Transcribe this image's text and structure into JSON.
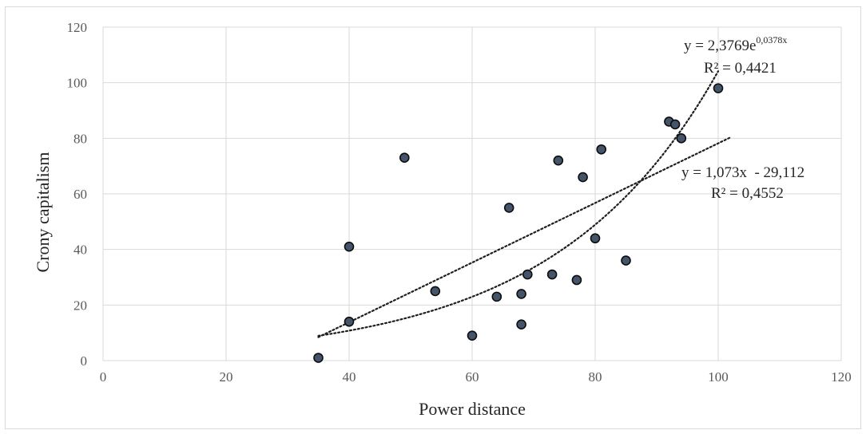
{
  "chart_data": {
    "type": "scatter",
    "title": "",
    "xlabel": "Power distance",
    "ylabel": "Crony capitalism",
    "xlim": [
      0,
      120
    ],
    "ylim": [
      0,
      120
    ],
    "x_ticks": [
      0,
      20,
      40,
      60,
      80,
      100,
      120
    ],
    "y_ticks": [
      0,
      20,
      40,
      60,
      80,
      100,
      120
    ],
    "grid": true,
    "marker_color": "#44546a",
    "marker_edge_color": "#0d0d0d",
    "points": [
      {
        "x": 35,
        "y": 1
      },
      {
        "x": 40,
        "y": 41
      },
      {
        "x": 40,
        "y": 14
      },
      {
        "x": 49,
        "y": 73
      },
      {
        "x": 54,
        "y": 25
      },
      {
        "x": 60,
        "y": 9
      },
      {
        "x": 64,
        "y": 23
      },
      {
        "x": 66,
        "y": 55
      },
      {
        "x": 68,
        "y": 24
      },
      {
        "x": 68,
        "y": 13
      },
      {
        "x": 69,
        "y": 31
      },
      {
        "x": 73,
        "y": 31
      },
      {
        "x": 74,
        "y": 72
      },
      {
        "x": 77,
        "y": 29
      },
      {
        "x": 78,
        "y": 66
      },
      {
        "x": 80,
        "y": 44
      },
      {
        "x": 81,
        "y": 76
      },
      {
        "x": 85,
        "y": 36
      },
      {
        "x": 92,
        "y": 86
      },
      {
        "x": 93,
        "y": 85
      },
      {
        "x": 94,
        "y": 80
      },
      {
        "x": 100,
        "y": 98
      }
    ],
    "trendlines": [
      {
        "kind": "linear",
        "slope": 1.073,
        "intercept": -29.112,
        "x_range": [
          35,
          102
        ],
        "equation": "y = 1,073x  - 29,112",
        "r_squared_label": "R² = 0,4552"
      },
      {
        "kind": "exponential",
        "a": 2.3769,
        "b": 0.0378,
        "x_range": [
          35,
          100
        ],
        "equation_base": "y = 2,3769e",
        "equation_exponent": "0,0378x",
        "r_squared_label": "R² = 0,4421"
      }
    ]
  }
}
